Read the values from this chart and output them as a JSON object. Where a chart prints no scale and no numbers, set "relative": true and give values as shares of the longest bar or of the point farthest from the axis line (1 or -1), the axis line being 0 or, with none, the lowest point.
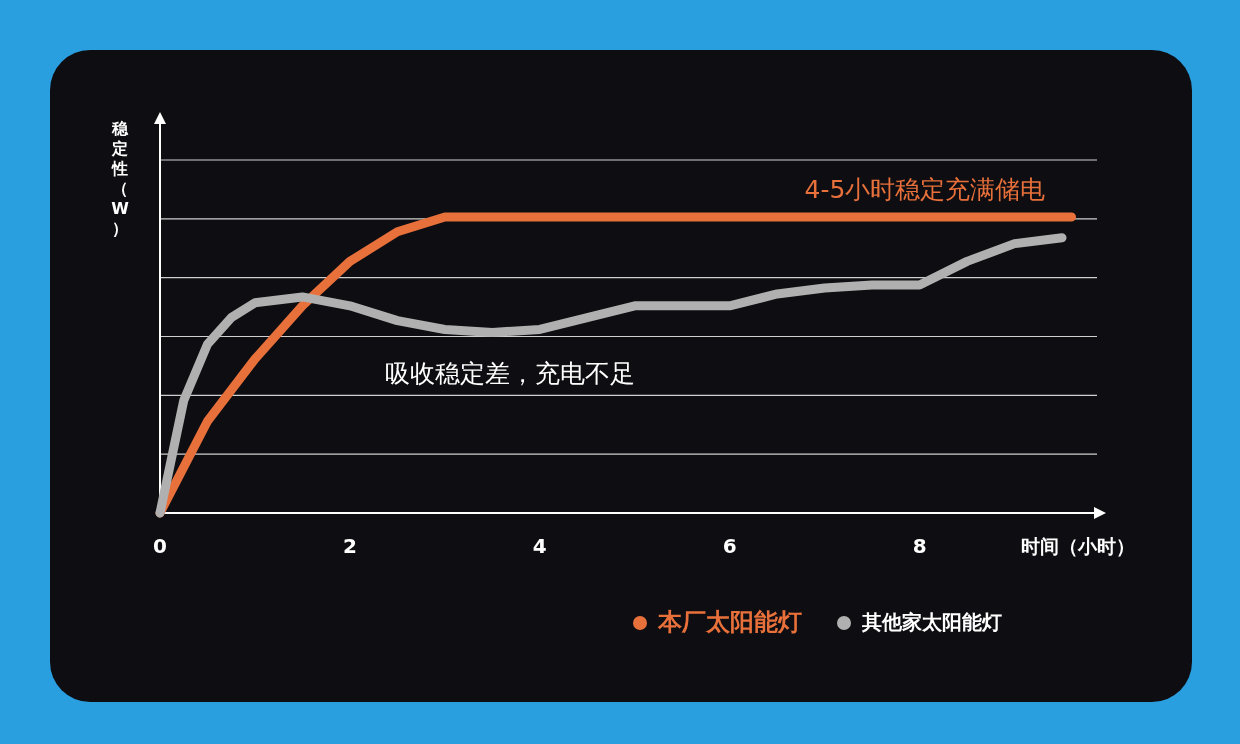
{
  "chart_data": {
    "type": "line",
    "relative": true,
    "xlabel": "时间（小时）",
    "ylabel": "稳定性（W）",
    "xlim": [
      0,
      9.9
    ],
    "xticks": [
      0,
      2,
      4,
      6,
      8
    ],
    "grid": "y",
    "legend": "bottom right",
    "marker": "none",
    "line_style": "solid",
    "annotations": [
      "4-5小时稳定充满储电",
      "吸收稳定差，充电不足"
    ],
    "series": [
      {
        "name": "本厂太阳能灯",
        "color": "#e8703a",
        "x": [
          0,
          0.5,
          1,
          1.5,
          2,
          2.5,
          3,
          3.5,
          9.6
        ],
        "values": [
          0,
          0.31,
          0.52,
          0.7,
          0.85,
          0.95,
          1.0,
          1.0,
          1.0
        ]
      },
      {
        "name": "其他家太阳能灯",
        "color": "#b0b0b0",
        "x": [
          0,
          0.25,
          0.5,
          0.75,
          1,
          1.5,
          2,
          2.5,
          3,
          3.5,
          4,
          4.5,
          5,
          5.5,
          6,
          6.5,
          7,
          7.5,
          8,
          8.5,
          9,
          9.5
        ],
        "values": [
          0,
          0.38,
          0.57,
          0.66,
          0.71,
          0.73,
          0.7,
          0.65,
          0.62,
          0.61,
          0.62,
          0.66,
          0.7,
          0.7,
          0.7,
          0.74,
          0.76,
          0.77,
          0.77,
          0.85,
          0.91,
          0.93
        ]
      }
    ]
  }
}
